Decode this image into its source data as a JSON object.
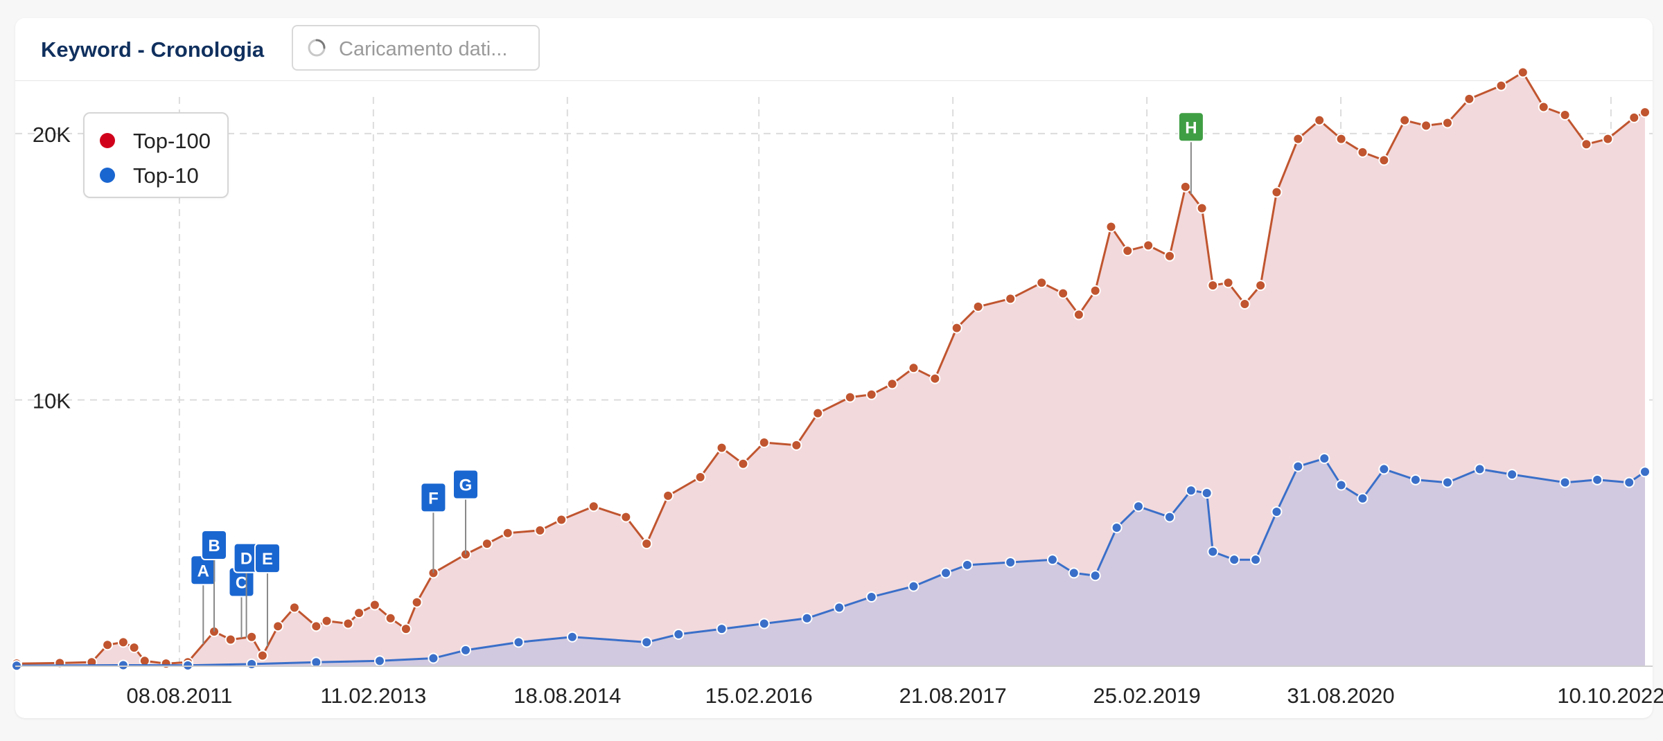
{
  "header": {
    "title": "Keyword - Cronologia",
    "loading_label": "Caricamento dati..."
  },
  "legend": [
    {
      "label": "Top-100",
      "color": "#d0021b"
    },
    {
      "label": "Top-10",
      "color": "#1a66d0"
    }
  ],
  "chart_data": {
    "type": "area",
    "x_ticks": [
      "08.08.2011",
      "11.02.2013",
      "18.08.2014",
      "15.02.2016",
      "21.08.2017",
      "25.02.2019",
      "31.08.2020",
      "10.10.2022"
    ],
    "y_ticks": [
      "10K",
      "20K"
    ],
    "ylim": [
      0,
      22000
    ],
    "grid": true,
    "legend_position": "top-left",
    "series": [
      {
        "name": "Top-100",
        "line_color": "#c0552f",
        "fill_color": "#f2d9dc",
        "points": [
          [
            "2010-05-01",
            100
          ],
          [
            "2010-09-01",
            120
          ],
          [
            "2010-12-01",
            150
          ],
          [
            "2011-01-15",
            800
          ],
          [
            "2011-03-01",
            900
          ],
          [
            "2011-04-01",
            700
          ],
          [
            "2011-05-01",
            200
          ],
          [
            "2011-07-01",
            100
          ],
          [
            "2011-09-01",
            150
          ],
          [
            "2011-11-15",
            1300
          ],
          [
            "2012-01-01",
            1000
          ],
          [
            "2012-03-01",
            1100
          ],
          [
            "2012-04-01",
            400
          ],
          [
            "2012-05-15",
            1500
          ],
          [
            "2012-07-01",
            2200
          ],
          [
            "2012-09-01",
            1500
          ],
          [
            "2012-10-01",
            1700
          ],
          [
            "2012-12-01",
            1600
          ],
          [
            "2013-01-01",
            2000
          ],
          [
            "2013-02-15",
            2300
          ],
          [
            "2013-04-01",
            1800
          ],
          [
            "2013-05-15",
            1400
          ],
          [
            "2013-06-15",
            2400
          ],
          [
            "2013-08-01",
            3500
          ],
          [
            "2013-11-01",
            4200
          ],
          [
            "2014-01-01",
            4600
          ],
          [
            "2014-03-01",
            5000
          ],
          [
            "2014-06-01",
            5100
          ],
          [
            "2014-08-01",
            5500
          ],
          [
            "2014-11-01",
            6000
          ],
          [
            "2015-02-01",
            5600
          ],
          [
            "2015-04-01",
            4600
          ],
          [
            "2015-06-01",
            6400
          ],
          [
            "2015-09-01",
            7100
          ],
          [
            "2015-11-01",
            8200
          ],
          [
            "2016-01-01",
            7600
          ],
          [
            "2016-03-01",
            8400
          ],
          [
            "2016-06-01",
            8300
          ],
          [
            "2016-08-01",
            9500
          ],
          [
            "2016-11-01",
            10100
          ],
          [
            "2017-01-01",
            10200
          ],
          [
            "2017-03-01",
            10600
          ],
          [
            "2017-05-01",
            11200
          ],
          [
            "2017-07-01",
            10800
          ],
          [
            "2017-09-01",
            12700
          ],
          [
            "2017-11-01",
            13500
          ],
          [
            "2018-02-01",
            13800
          ],
          [
            "2018-05-01",
            14400
          ],
          [
            "2018-07-01",
            14000
          ],
          [
            "2018-08-15",
            13200
          ],
          [
            "2018-10-01",
            14100
          ],
          [
            "2018-11-15",
            16500
          ],
          [
            "2019-01-01",
            15600
          ],
          [
            "2019-03-01",
            15800
          ],
          [
            "2019-05-01",
            15400
          ],
          [
            "2019-06-15",
            18000
          ],
          [
            "2019-08-01",
            17200
          ],
          [
            "2019-09-01",
            14300
          ],
          [
            "2019-10-15",
            14400
          ],
          [
            "2019-12-01",
            13600
          ],
          [
            "2020-01-15",
            14300
          ],
          [
            "2020-03-01",
            17800
          ],
          [
            "2020-05-01",
            19800
          ],
          [
            "2020-07-01",
            20500
          ],
          [
            "2020-09-01",
            19800
          ],
          [
            "2020-11-01",
            19300
          ],
          [
            "2021-01-01",
            19000
          ],
          [
            "2021-03-01",
            20500
          ],
          [
            "2021-05-01",
            20300
          ],
          [
            "2021-07-01",
            20400
          ],
          [
            "2021-09-01",
            21300
          ],
          [
            "2021-12-01",
            21800
          ],
          [
            "2022-02-01",
            22300
          ],
          [
            "2022-04-01",
            21000
          ],
          [
            "2022-06-01",
            20700
          ],
          [
            "2022-08-01",
            19600
          ],
          [
            "2022-10-01",
            19800
          ],
          [
            "2022-12-15",
            20600
          ],
          [
            "2023-01-15",
            20800
          ]
        ]
      },
      {
        "name": "Top-10",
        "line_color": "#3a6fc9",
        "fill_color": "#cfc8de",
        "points": [
          [
            "2010-05-01",
            20
          ],
          [
            "2011-03-01",
            40
          ],
          [
            "2011-09-01",
            30
          ],
          [
            "2012-03-01",
            80
          ],
          [
            "2012-09-01",
            150
          ],
          [
            "2013-03-01",
            200
          ],
          [
            "2013-08-01",
            300
          ],
          [
            "2013-11-01",
            600
          ],
          [
            "2014-04-01",
            900
          ],
          [
            "2014-09-01",
            1100
          ],
          [
            "2015-04-01",
            900
          ],
          [
            "2015-07-01",
            1200
          ],
          [
            "2015-11-01",
            1400
          ],
          [
            "2016-03-01",
            1600
          ],
          [
            "2016-07-01",
            1800
          ],
          [
            "2016-10-01",
            2200
          ],
          [
            "2017-01-01",
            2600
          ],
          [
            "2017-05-01",
            3000
          ],
          [
            "2017-08-01",
            3500
          ],
          [
            "2017-10-01",
            3800
          ],
          [
            "2018-02-01",
            3900
          ],
          [
            "2018-06-01",
            4000
          ],
          [
            "2018-08-01",
            3500
          ],
          [
            "2018-10-01",
            3400
          ],
          [
            "2018-12-01",
            5200
          ],
          [
            "2019-02-01",
            6000
          ],
          [
            "2019-05-01",
            5600
          ],
          [
            "2019-07-01",
            6600
          ],
          [
            "2019-08-15",
            6500
          ],
          [
            "2019-09-01",
            4300
          ],
          [
            "2019-11-01",
            4000
          ],
          [
            "2020-01-01",
            4000
          ],
          [
            "2020-03-01",
            5800
          ],
          [
            "2020-05-01",
            7500
          ],
          [
            "2020-07-15",
            7800
          ],
          [
            "2020-09-01",
            6800
          ],
          [
            "2020-11-01",
            6300
          ],
          [
            "2021-01-01",
            7400
          ],
          [
            "2021-04-01",
            7000
          ],
          [
            "2021-07-01",
            6900
          ],
          [
            "2021-10-01",
            7400
          ],
          [
            "2022-01-01",
            7200
          ],
          [
            "2022-06-01",
            6900
          ],
          [
            "2022-09-01",
            7000
          ],
          [
            "2022-12-01",
            6900
          ],
          [
            "2023-01-15",
            7300
          ]
        ]
      }
    ],
    "flags": [
      {
        "label": "A",
        "date": "2011-10-15",
        "color": "#1a66d0"
      },
      {
        "label": "B",
        "date": "2011-11-15",
        "color": "#1a66d0"
      },
      {
        "label": "C",
        "date": "2012-02-01",
        "color": "#1a66d0"
      },
      {
        "label": "D",
        "date": "2012-02-15",
        "color": "#1a66d0"
      },
      {
        "label": "E",
        "date": "2012-04-15",
        "color": "#1a66d0"
      },
      {
        "label": "F",
        "date": "2013-08-01",
        "color": "#1a66d0"
      },
      {
        "label": "G",
        "date": "2013-11-01",
        "color": "#1a66d0"
      },
      {
        "label": "H",
        "date": "2019-07-01",
        "color": "#3f9e43"
      }
    ]
  }
}
